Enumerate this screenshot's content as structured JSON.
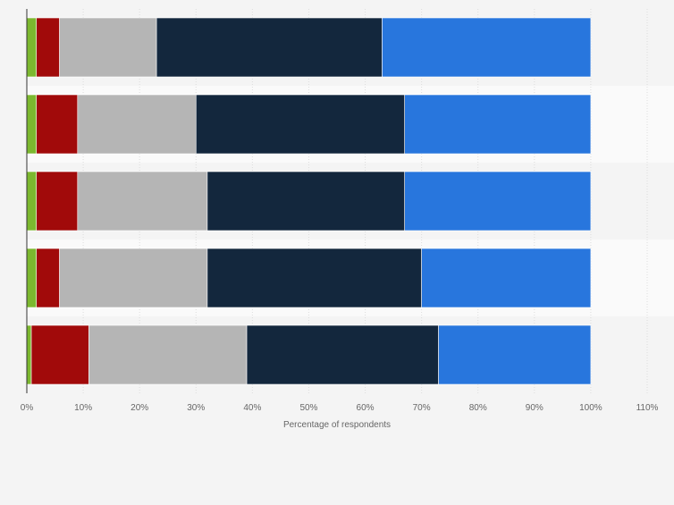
{
  "chart_data": {
    "type": "bar",
    "orientation": "horizontal",
    "stacked": true,
    "categories": [
      "",
      "",
      "",
      "",
      ""
    ],
    "series": [
      {
        "values": [
          1.7,
          1.7,
          1.7,
          1.7,
          0.8
        ],
        "color": "#7cb82f"
      },
      {
        "values": [
          4.1,
          7.3,
          7.3,
          4.1,
          10.2
        ],
        "color": "#a10a0a"
      },
      {
        "values": [
          17.2,
          21.0,
          23.0,
          26.2,
          28.0
        ],
        "color": "#b5b5b5"
      },
      {
        "values": [
          40.0,
          37.0,
          35.0,
          38.0,
          34.0
        ],
        "color": "#13273d"
      },
      {
        "values": [
          37.0,
          33.0,
          33.0,
          30.0,
          27.0
        ],
        "color": "#2876dd"
      }
    ],
    "xlabel": "Percentage of respondents",
    "xlim": [
      0,
      110
    ],
    "xticks": [
      "0%",
      "10%",
      "20%",
      "30%",
      "40%",
      "50%",
      "60%",
      "70%",
      "80%",
      "90%",
      "100%",
      "110%"
    ],
    "grid": true,
    "legend": "none"
  }
}
